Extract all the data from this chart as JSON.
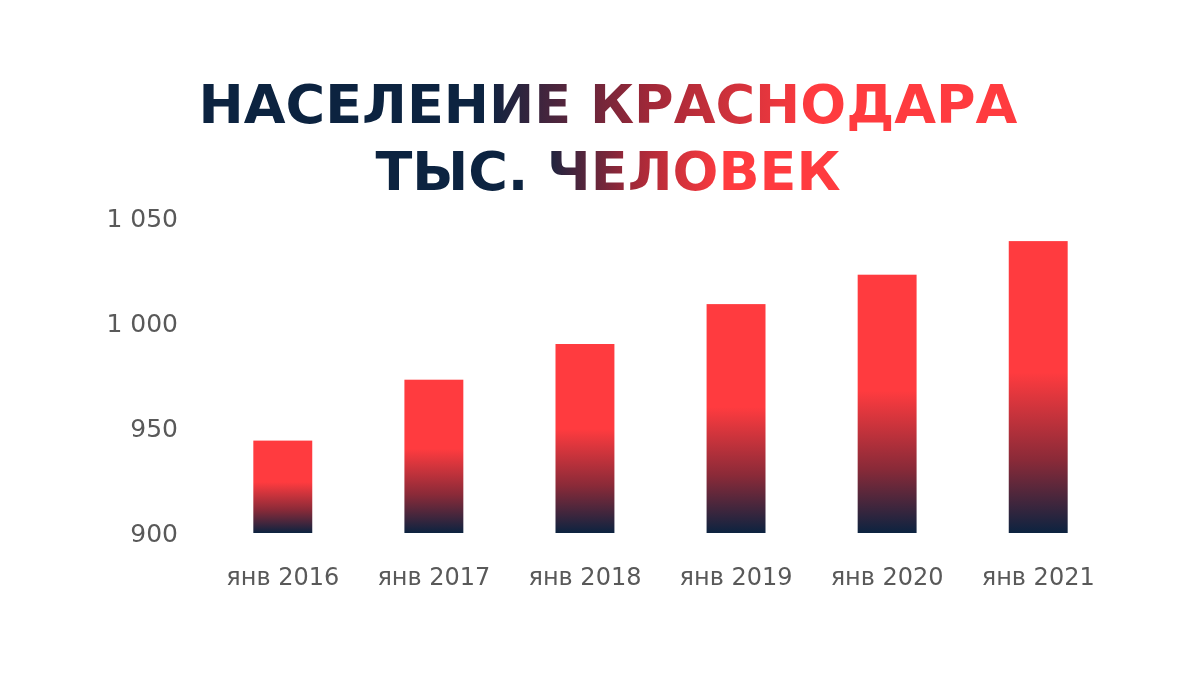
{
  "chart_data": {
    "type": "bar",
    "title": "НАСЕЛЕНИЕ КРАСНОДАРА",
    "subtitle": "ТЫС. ЧЕЛОВЕК",
    "categories": [
      "янв 2016",
      "янв 2017",
      "янв 2018",
      "янв 2019",
      "янв 2020",
      "янв 2021"
    ],
    "values": [
      944,
      973,
      990,
      1009,
      1023,
      1039
    ],
    "color": "#ff3b3f",
    "ylim": [
      900,
      1050
    ],
    "yticks": [
      900,
      950,
      {
        "value": 1000,
        "label": "1 000"
      },
      {
        "value": 1050,
        "label": "1 050"
      }
    ],
    "grid": false
  }
}
